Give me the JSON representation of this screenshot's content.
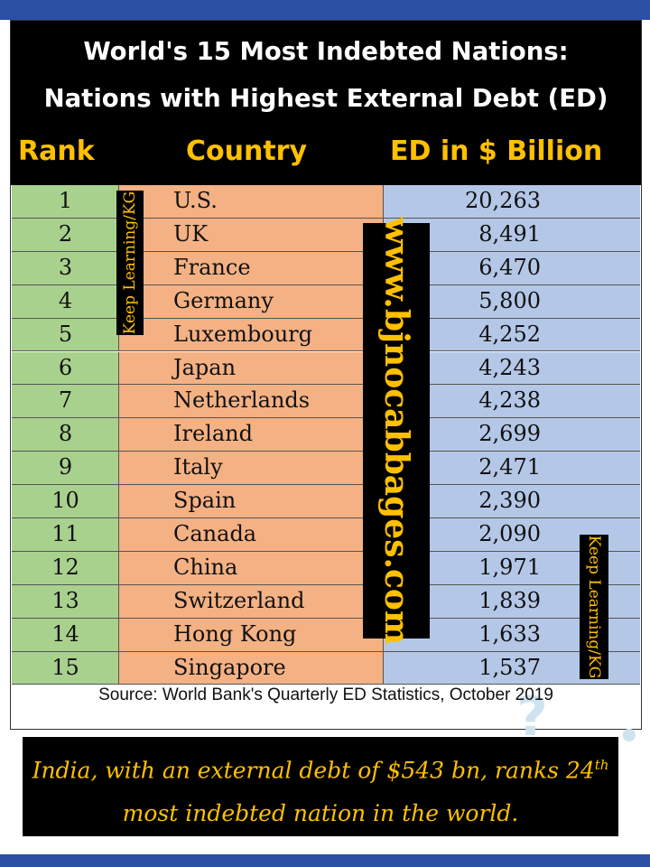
{
  "title": {
    "line1": "World's 15 Most Indebted Nations:",
    "line2": "Nations with Highest External Debt (ED)"
  },
  "headers": {
    "rank": "Rank",
    "country": "Country",
    "ed": "ED in $ Billion"
  },
  "rows": [
    {
      "rank": "1",
      "country": "U.S.",
      "ed": "20,263"
    },
    {
      "rank": "2",
      "country": "UK",
      "ed": "8,491"
    },
    {
      "rank": "3",
      "country": "France",
      "ed": "6,470"
    },
    {
      "rank": "4",
      "country": "Germany",
      "ed": "5,800"
    },
    {
      "rank": "5",
      "country": "Luxembourg",
      "ed": "4,252"
    },
    {
      "rank": "6",
      "country": "Japan",
      "ed": "4,243"
    },
    {
      "rank": "7",
      "country": "Netherlands",
      "ed": "4,238"
    },
    {
      "rank": "8",
      "country": "Ireland",
      "ed": "2,699"
    },
    {
      "rank": "9",
      "country": "Italy",
      "ed": "2,471"
    },
    {
      "rank": "10",
      "country": "Spain",
      "ed": "2,390"
    },
    {
      "rank": "11",
      "country": "Canada",
      "ed": "2,090"
    },
    {
      "rank": "12",
      "country": "China",
      "ed": "1,971"
    },
    {
      "rank": "13",
      "country": "Switzerland",
      "ed": "1,839"
    },
    {
      "rank": "14",
      "country": "Hong Kong",
      "ed": "1,633"
    },
    {
      "rank": "15",
      "country": "Singapore",
      "ed": "1,537"
    }
  ],
  "watermarks": {
    "keep_learning": "Keep Learning/KG",
    "website": "www.bjnocabbages.com"
  },
  "source": "Source: World Bank's Quarterly ED Statistics, October 2019",
  "footer": {
    "line1_text": "India, with an external debt of $543 bn, ranks 24",
    "line1_sup": "th",
    "line2": "most indebted nation in the world."
  },
  "colors": {
    "rank_col": "#a9d18e",
    "country_col": "#f4b183",
    "ed_col": "#b4c7e7",
    "accent": "#ffc000",
    "band": "#2b4fa3"
  }
}
